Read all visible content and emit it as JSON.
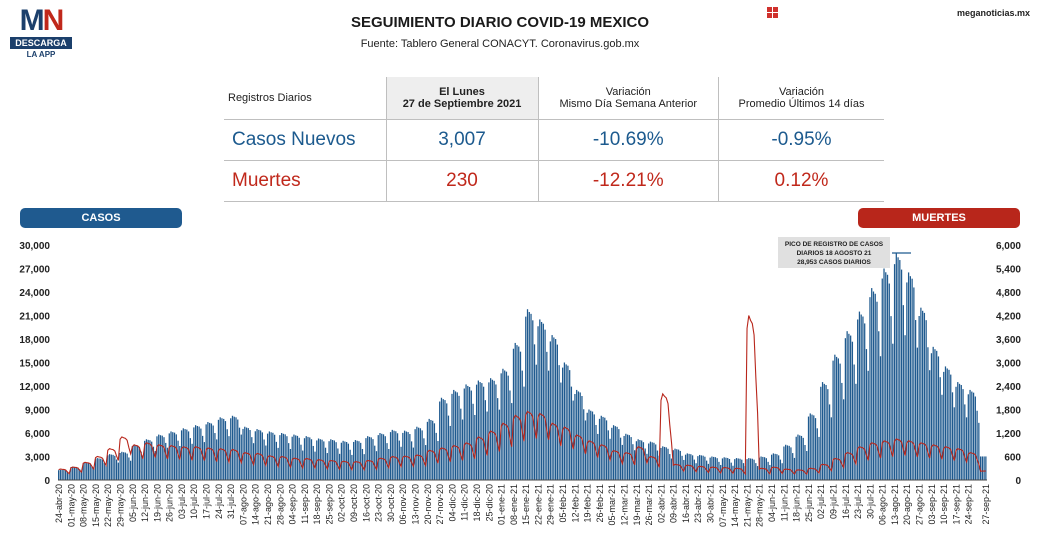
{
  "logo": {
    "mark_m": "M",
    "mark_n": "N",
    "bar": "DESCARGA",
    "sub": "LA APP"
  },
  "header": {
    "title": "SEGUIMIENTO DIARIO COVID-19 MEXICO",
    "source": "Fuente: Tablero General CONACYT. Coronavirus.gob.mx",
    "site": "meganoticias.mx"
  },
  "colors": {
    "casos": "#1f5a8f",
    "muertes": "#b8261b"
  },
  "icons": {
    "flag": "flag-grid-icon"
  },
  "stats": {
    "header_label": "Registros Diarios",
    "date_line1": "El Lunes",
    "date_line2": "27 de Septiembre 2021",
    "var1_line1": "Variación",
    "var1_line2": "Mismo Día Semana Anterior",
    "var2_line1": "Variación",
    "var2_line2": "Promedio Últimos 14 días",
    "casos": {
      "label": "Casos Nuevos",
      "value": "3,007",
      "var_week": "-10.69%",
      "var_14d": "-0.95%"
    },
    "muertes": {
      "label": "Muertes",
      "value": "230",
      "var_week": "-12.21%",
      "var_14d": "0.12%"
    }
  },
  "chart_labels": {
    "casos": "CASOS",
    "muertes": "MUERTES"
  },
  "annotation": {
    "line1": "PICO DE REGISTRO DE CASOS",
    "line2": "DIARIOS 18 AGOSTO 21",
    "line3": "28,953 CASOS DIARIOS"
  },
  "chart_data": {
    "type": "bar",
    "x_start": "24-abr-20",
    "x_end": "27-sep-21",
    "y_left": {
      "label": "CASOS",
      "range": [
        0,
        30000
      ],
      "ticks": [
        "0",
        "3,000",
        "6,000",
        "9,000",
        "12,000",
        "15,000",
        "18,000",
        "21,000",
        "24,000",
        "27,000",
        "30,000"
      ]
    },
    "y_right": {
      "label": "MUERTES",
      "range": [
        0,
        6000
      ],
      "ticks": [
        "0",
        "600",
        "1,200",
        "1,800",
        "2,400",
        "3,000",
        "3,600",
        "4,200",
        "4,800",
        "5,400",
        "6,000"
      ]
    },
    "x_ticks": [
      "24-abr-20",
      "01-may-20",
      "08-may-20",
      "15-may-20",
      "22-may-20",
      "29-may-20",
      "05-jun-20",
      "12-jun-20",
      "19-jun-20",
      "26-jun-20",
      "03-jul-20",
      "10-jul-20",
      "17-jul-20",
      "24-jul-20",
      "31-jul-20",
      "07-ago-20",
      "14-ago-20",
      "21-ago-20",
      "28-ago-20",
      "04-sep-20",
      "11-sep-20",
      "18-sep-20",
      "25-sep-20",
      "02-oct-20",
      "09-oct-20",
      "16-oct-20",
      "23-oct-20",
      "30-oct-20",
      "06-nov-20",
      "13-nov-20",
      "20-nov-20",
      "27-nov-20",
      "04-dic-20",
      "11-dic-20",
      "18-dic-20",
      "25-dic-20",
      "01-ene-21",
      "08-ene-21",
      "15-ene-21",
      "22-ene-21",
      "29-ene-21",
      "05-feb-21",
      "12-feb-21",
      "19-feb-21",
      "26-feb-21",
      "05-mar-21",
      "12-mar-21",
      "19-mar-21",
      "26-mar-21",
      "02-abr-21",
      "09-abr-21",
      "16-abr-21",
      "23-abr-21",
      "30-abr-21",
      "07-may-21",
      "14-may-21",
      "21-may-21",
      "28-may-21",
      "04-jun-21",
      "11-jun-21",
      "18-jun-21",
      "25-jun-21",
      "02-jul-21",
      "09-jul-21",
      "16-jul-21",
      "23-jul-21",
      "30-jul-21",
      "06-ago-21",
      "13-ago-21",
      "20-ago-21",
      "27-ago-21",
      "03-sep-21",
      "10-sep-21",
      "17-sep-21",
      "24-sep-21",
      "27-sep-21"
    ],
    "series": [
      {
        "name": "CASOS",
        "axis": "left",
        "type": "bar",
        "weekly_peaks": [
          1300,
          1700,
          2200,
          2800,
          3300,
          3600,
          4500,
          5200,
          5800,
          6200,
          6600,
          7000,
          7400,
          8000,
          8200,
          6800,
          6500,
          6200,
          6000,
          5800,
          5600,
          5300,
          5200,
          5000,
          5100,
          5600,
          6000,
          6400,
          6300,
          6800,
          7800,
          10500,
          11500,
          12200,
          12700,
          13000,
          14200,
          17500,
          21800,
          20500,
          18500,
          15000,
          11500,
          9000,
          8200,
          7000,
          5900,
          5200,
          4900,
          4300,
          4000,
          3400,
          3200,
          3000,
          2900,
          2800,
          2800,
          3000,
          3400,
          4500,
          5800,
          8500,
          12500,
          16000,
          19000,
          21500,
          24500,
          27000,
          28953,
          26500,
          22000,
          17000,
          14500,
          12500,
          11500,
          3007
        ],
        "weekly_lows": [
          700,
          800,
          1000,
          1200,
          1500,
          1700,
          2200,
          2700,
          3000,
          3100,
          3300,
          3400,
          3700,
          4000,
          4200,
          3300,
          3000,
          2700,
          2600,
          2400,
          2300,
          2200,
          2100,
          2000,
          2100,
          2400,
          2600,
          2800,
          2700,
          2900,
          3100,
          4500,
          5200,
          5700,
          6100,
          6300,
          6900,
          8200,
          10000,
          9600,
          8400,
          6900,
          5000,
          3800,
          3300,
          2800,
          2400,
          2100,
          1900,
          1700,
          1600,
          1300,
          1300,
          1200,
          1100,
          1100,
          1100,
          1200,
          1300,
          1700,
          2300,
          3500,
          5000,
          6500,
          7800,
          8900,
          10000,
          11000,
          11500,
          10500,
          8700,
          6800,
          5800,
          5000,
          4500,
          3000
        ]
      },
      {
        "name": "MUERTES",
        "axis": "right",
        "type": "line",
        "weekly_peaks": [
          280,
          330,
          450,
          600,
          800,
          1100,
          900,
          950,
          900,
          880,
          850,
          850,
          820,
          800,
          780,
          700,
          680,
          620,
          600,
          560,
          550,
          520,
          500,
          480,
          470,
          500,
          560,
          600,
          610,
          640,
          760,
          820,
          880,
          950,
          1100,
          1250,
          1450,
          1650,
          1750,
          1700,
          1450,
          1350,
          1150,
          1000,
          900,
          750,
          700,
          850,
          600,
          2200,
          400,
          380,
          350,
          330,
          320,
          300,
          4200,
          300,
          330,
          280,
          260,
          300,
          400,
          550,
          700,
          850,
          950,
          1000,
          1050,
          1000,
          950,
          900,
          850,
          800,
          700,
          230
        ],
        "weekly_lows": [
          80,
          120,
          170,
          220,
          300,
          380,
          300,
          320,
          300,
          290,
          270,
          260,
          240,
          230,
          220,
          190,
          170,
          160,
          150,
          140,
          140,
          130,
          130,
          120,
          120,
          130,
          150,
          170,
          180,
          190,
          210,
          230,
          250,
          270,
          310,
          380,
          450,
          550,
          600,
          580,
          480,
          420,
          350,
          290,
          250,
          200,
          180,
          160,
          140,
          120,
          110,
          100,
          90,
          80,
          70,
          60,
          60,
          60,
          60,
          70,
          80,
          100,
          130,
          170,
          220,
          270,
          300,
          330,
          340,
          320,
          300,
          280,
          260,
          240,
          220,
          150
        ]
      }
    ],
    "legend": "none",
    "grid": false
  }
}
